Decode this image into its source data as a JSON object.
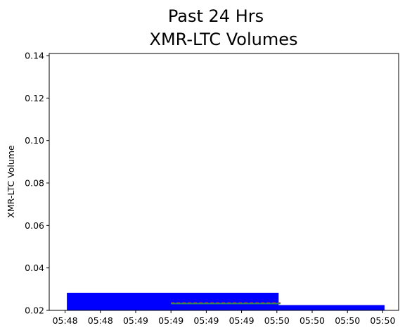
{
  "chart_data": {
    "type": "bar",
    "title_line1": "Past 24 Hrs",
    "title_line2": "XMR-LTC Volumes",
    "xlabel": "",
    "ylabel": "XMR-LTC Volume",
    "ylim": [
      0.02,
      0.141
    ],
    "yticks": [
      "0.02",
      "0.04",
      "0.06",
      "0.08",
      "0.10",
      "0.12",
      "0.14"
    ],
    "xticks": [
      "05:48",
      "05:48",
      "05:49",
      "05:49",
      "05:49",
      "05:49",
      "05:50",
      "05:50",
      "05:50",
      "05:50"
    ],
    "grid": false,
    "bars": [
      {
        "x_start": 0.05,
        "x_end": 6.05,
        "value": 0.0283,
        "color": "#0000ff"
      },
      {
        "x_start": 6.0,
        "x_end": 9.05,
        "value": 0.0225,
        "color": "#0000ff"
      }
    ],
    "series": [
      {
        "style": "dashed",
        "color": "#c0392b",
        "x": [
          3.0,
          6.1
        ],
        "y": [
          0.0235,
          0.0235
        ]
      },
      {
        "style": "solid",
        "color": "#2e8b57",
        "x": [
          3.0,
          6.1
        ],
        "y": [
          0.0232,
          0.0232
        ]
      }
    ]
  }
}
